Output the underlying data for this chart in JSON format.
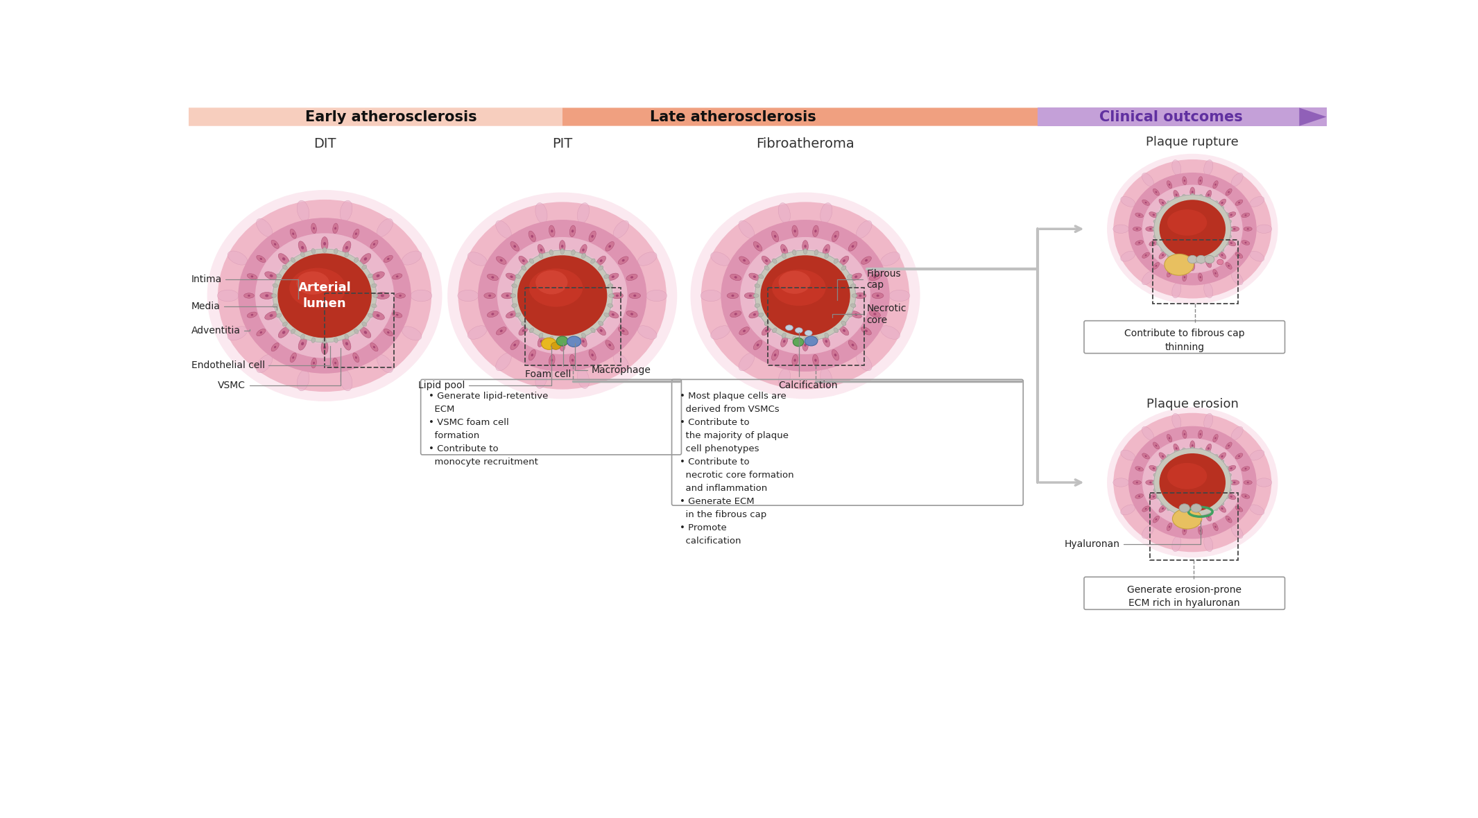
{
  "arrow1_label": "Early atherosclerosis",
  "arrow2_label": "Late atherosclerosis",
  "arrow3_label": "Clinical outcomes",
  "diagram_titles": [
    "DIT",
    "PIT",
    "Fibroatheroma",
    "Plaque rupture",
    "Plaque erosion"
  ],
  "arterial_lumen_label": "Arterial\nlumen",
  "bullet_pit": "• Generate lipid-retentive\n  ECM\n• VSMC foam cell\n  formation\n• Contribute to\n  monocyte recruitment",
  "bullet_fibro": "• Most plaque cells are\n  derived from VSMCs\n• Contribute to\n  the majority of plaque\n  cell phenotypes\n• Contribute to\n  necrotic core formation\n  and inflammation\n• Generate ECM\n  in the fibrous cap\n• Promote\n  calcification",
  "outcome1_text": "Contribute to fibrous cap\nthinning",
  "outcome2_text": "Generate erosion-prone\nECM rich in hyaluronan",
  "colors": {
    "bg": "#ffffff",
    "arrow_salmon_light": "#fce8e0",
    "arrow_salmon_dark": "#e8806a",
    "arrow_purple": "#b090cc",
    "outer_glow": "#f5d0d8",
    "adventitia": "#f2bcc8",
    "media_outer": "#e8a0b8",
    "media_inner": "#dc88a8",
    "intima": "#e0a8c0",
    "cell_fill": "#cc7090",
    "cell_edge": "#aa4870",
    "endo": "#c8c8bc",
    "lumen_dark": "#b83020",
    "lumen_mid": "#cc3828",
    "lumen_light": "#de5040",
    "yellow_pool1": "#e8c030",
    "yellow_pool2": "#d4a820",
    "green_cell": "#60b060",
    "blue_cell": "#7090c8",
    "necrotic": "#e8c878",
    "calcspot": "#b0c8d8",
    "rupture_yellow": "#e8c060",
    "rupture_gray": "#b8b8b0",
    "rupture_pink": "#e090a8",
    "erosion_yellow": "#e8c060",
    "erosion_green": "#50a860",
    "hyaluronan_green": "#40a060",
    "gray_arrow": "#aaaaaa",
    "dashed": "#444444",
    "text": "#222222",
    "text_white": "#ffffff",
    "bracket": "#888888"
  }
}
